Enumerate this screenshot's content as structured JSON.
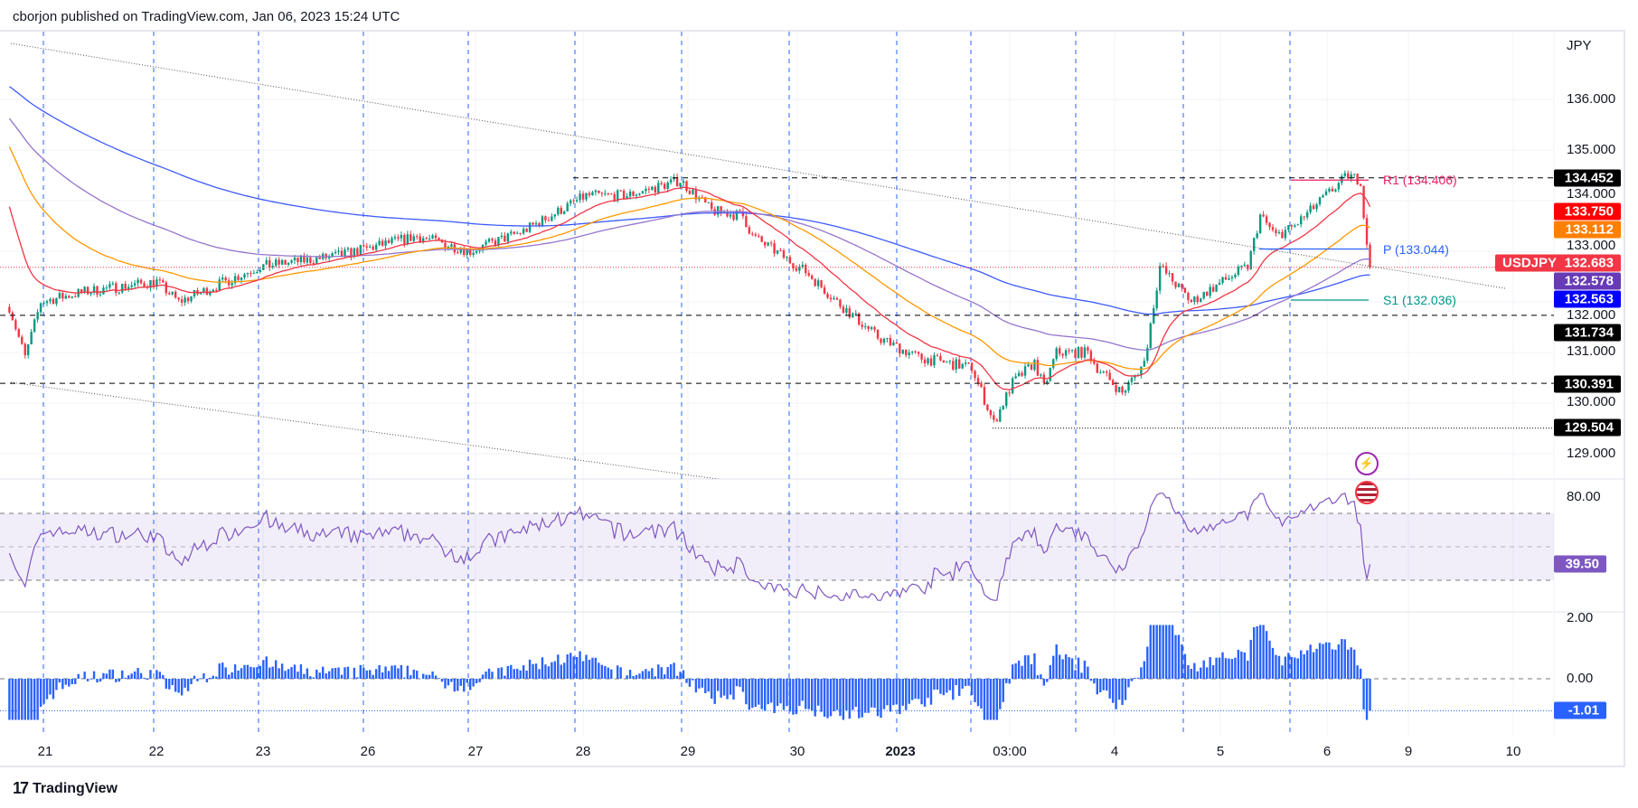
{
  "header": {
    "text": "cborjon published on TradingView.com, Jan 06, 2023 15:24 UTC"
  },
  "footer": {
    "logo_text": "TradingView"
  },
  "colors": {
    "up": "#089981",
    "down": "#f23645",
    "ema20": "#f23645",
    "ema50": "#ff9800",
    "ema100": "#9575cd",
    "ema200": "#3d5afe",
    "rsi": "#7e57c2",
    "hist": "#2962ff",
    "grid": "#f0f3fa"
  },
  "price_axis": {
    "currency": "JPY",
    "ticks": [
      "136.000",
      "135.000",
      "134.000",
      "133.000",
      "132.000",
      "131.000",
      "130.000",
      "129.000"
    ],
    "tick_values": [
      136,
      135,
      134,
      133,
      132,
      131,
      130,
      129
    ]
  },
  "badges": [
    {
      "label": "134.452",
      "value": 134.452,
      "color": "#000000"
    },
    {
      "label": "133.750",
      "value": 133.75,
      "color": "#ff0000"
    },
    {
      "label": "133.112",
      "value": 133.112,
      "color": "#ff7f00"
    },
    {
      "label": "132.578",
      "value": 132.578,
      "color": "#673ab7"
    },
    {
      "label": "132.563",
      "value": 132.563,
      "color": "#0000ff"
    },
    {
      "label": "131.734",
      "value": 131.734,
      "color": "#000000"
    },
    {
      "label": "130.391",
      "value": 130.391,
      "color": "#000000"
    },
    {
      "label": "129.504",
      "value": 129.504,
      "color": "#000000"
    }
  ],
  "symbol_badge": {
    "symbol": "USDJPY",
    "price": "132.683",
    "value": 132.683,
    "color": "#f23645"
  },
  "pivots": [
    {
      "label": "R1 (134.406)",
      "value": 134.406,
      "color": "#e91e63"
    },
    {
      "label": "P (133.044)",
      "value": 133.044,
      "color": "#2962ff"
    },
    {
      "label": "S1 (132.036)",
      "value": 132.036,
      "color": "#009688"
    }
  ],
  "rsi_axis": {
    "ticks": [
      "80.00"
    ],
    "current": "39.50",
    "current_value": 39.5,
    "upper": 70,
    "middle": 50,
    "lower": 30
  },
  "osc_axis": {
    "ticks": [
      "2.00",
      "0.00"
    ],
    "current": "-1.01",
    "current_value": -1.01
  },
  "time_axis": {
    "labels": [
      "21",
      "22",
      "23",
      "26",
      "27",
      "28",
      "29",
      "30",
      "2023",
      "03:00",
      "4",
      "5",
      "6",
      "9",
      "10"
    ]
  },
  "icons": [
    "lightning-icon",
    "us-flag-icon"
  ],
  "chart_data": {
    "type": "candlestick",
    "symbol": "USDJPY",
    "x_unit": "bar index",
    "keypoints": [
      [
        3,
        131.9
      ],
      [
        8,
        130.9
      ],
      [
        13,
        132.0
      ],
      [
        27,
        132.2
      ],
      [
        50,
        132.4
      ],
      [
        57,
        132.0
      ],
      [
        83,
        132.7
      ],
      [
        107,
        132.9
      ],
      [
        133,
        133.3
      ],
      [
        150,
        133.0
      ],
      [
        167,
        133.4
      ],
      [
        187,
        134.1
      ],
      [
        200,
        134.1
      ],
      [
        217,
        134.4
      ],
      [
        227,
        133.8
      ],
      [
        237,
        133.7
      ],
      [
        240,
        133.3
      ],
      [
        257,
        132.6
      ],
      [
        267,
        132.0
      ],
      [
        280,
        131.3
      ],
      [
        293,
        130.9
      ],
      [
        310,
        130.7
      ],
      [
        317,
        129.6
      ],
      [
        323,
        130.4
      ],
      [
        330,
        130.8
      ],
      [
        333,
        130.3
      ],
      [
        337,
        131.0
      ],
      [
        347,
        131.0
      ],
      [
        350,
        130.7
      ],
      [
        358,
        130.2
      ],
      [
        365,
        130.8
      ],
      [
        370,
        132.7
      ],
      [
        380,
        132.0
      ],
      [
        390,
        132.4
      ],
      [
        398,
        132.7
      ],
      [
        402,
        133.7
      ],
      [
        407,
        133.3
      ],
      [
        413,
        133.5
      ],
      [
        423,
        134.1
      ],
      [
        430,
        134.5
      ],
      [
        434,
        134.4
      ],
      [
        435,
        133.7
      ],
      [
        437,
        132.68
      ]
    ],
    "levels": [
      {
        "value": 134.452,
        "style": "dashed"
      },
      {
        "value": 131.734,
        "style": "dashed"
      },
      {
        "value": 130.391,
        "style": "dashed"
      },
      {
        "value": 129.504,
        "style": "dotted"
      }
    ],
    "indicators": [
      "EMA 20",
      "EMA 50",
      "EMA 100",
      "EMA 200",
      "RSI 14",
      "Histogram oscillator"
    ],
    "ylim": [
      128.5,
      137.0
    ],
    "rsi_ylim": [
      0,
      100
    ],
    "osc_ylim": [
      -1.5,
      2.5
    ]
  }
}
